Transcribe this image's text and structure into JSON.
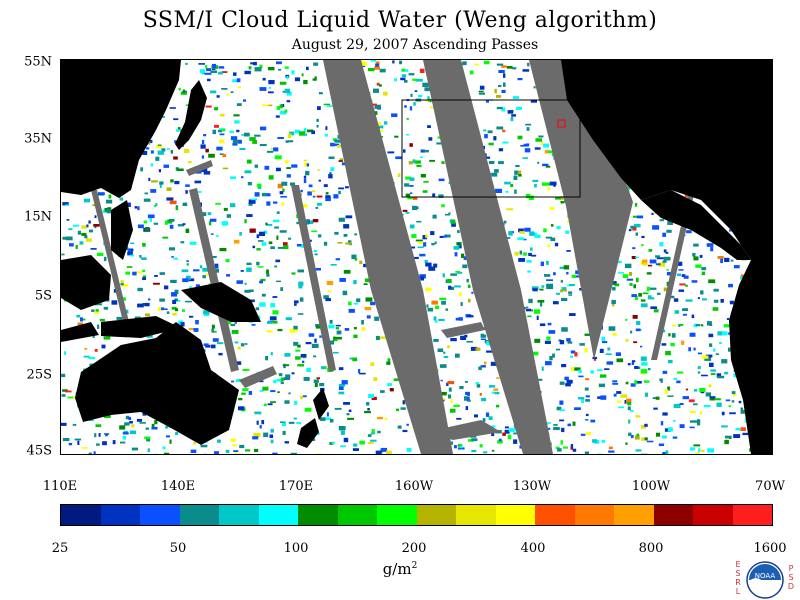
{
  "header": {
    "title": "SSM/I Cloud Liquid Water (Weng algorithm)",
    "subtitle": "August 29, 2007  Ascending Passes"
  },
  "map": {
    "lat_labels": [
      "55N",
      "35N",
      "15N",
      "5S",
      "25S",
      "45S"
    ],
    "lon_labels": [
      "110E",
      "140E",
      "170E",
      "160W",
      "130W",
      "100W",
      "70W"
    ],
    "lat_range": [
      -45,
      55
    ],
    "lon_range": [
      110,
      290
    ],
    "land_color": "#000000",
    "no_data_color": "#6b6b6b",
    "clear_sky_color": "#ffffff",
    "highlight_box_color": "#000000",
    "marker_color": "#ff0000"
  },
  "colorbar": {
    "labels": [
      "25",
      "50",
      "100",
      "200",
      "400",
      "800",
      "1600"
    ],
    "colors": [
      "#001a80",
      "#0032c0",
      "#0a50ff",
      "#0a8c8c",
      "#00c8c8",
      "#00ffff",
      "#008c00",
      "#00c800",
      "#00ff00",
      "#b4b400",
      "#e6e600",
      "#ffff00",
      "#ff5000",
      "#ff7800",
      "#ffa000",
      "#8c0000",
      "#c80000",
      "#ff1e1e"
    ],
    "units": "g/m",
    "units_sup": "2"
  },
  "logo": {
    "name": "noaa-logo",
    "center_text": "NOAA",
    "left_letters": [
      "E",
      "S",
      "R",
      "L"
    ],
    "right_letters": [
      "P",
      "S",
      "D"
    ]
  }
}
